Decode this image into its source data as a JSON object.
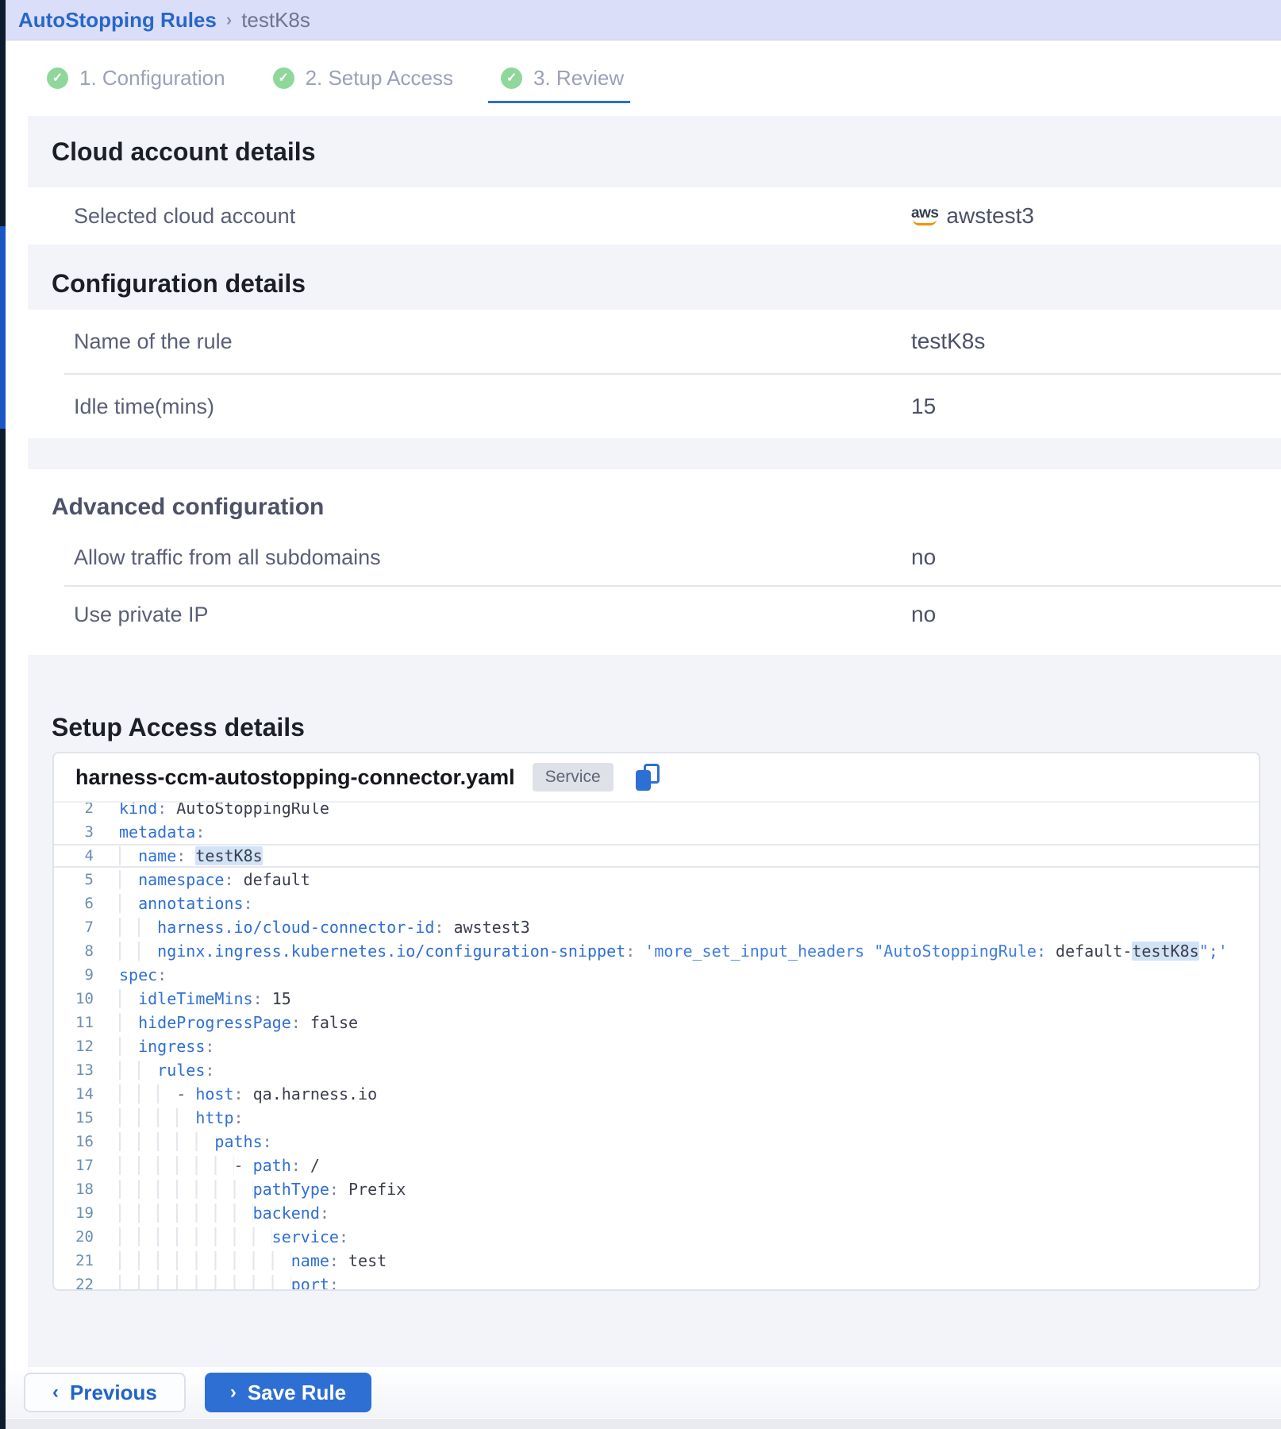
{
  "topbar": {
    "breadcrumb_link": "AutoStopping Rules",
    "separator": "›",
    "breadcrumb_current": "testK8s"
  },
  "steps": [
    {
      "label": "1. Configuration",
      "check": "✓"
    },
    {
      "label": "2. Setup Access",
      "check": "✓"
    },
    {
      "label": "3. Review",
      "check": "✓"
    }
  ],
  "cloud_section": {
    "heading": "Cloud account details",
    "row_label": "Selected cloud account",
    "provider": "aws",
    "account_name": "awstest3"
  },
  "config_section": {
    "heading": "Configuration details",
    "rows": [
      {
        "label": "Name of the rule",
        "value": "testK8s"
      },
      {
        "label": "Idle time(mins)",
        "value": "15"
      }
    ]
  },
  "advanced_section": {
    "heading": "Advanced configuration",
    "rows": [
      {
        "label": "Allow traffic from all subdomains",
        "value": "no"
      },
      {
        "label": "Use private IP",
        "value": "no"
      }
    ]
  },
  "setup_section": {
    "heading": "Setup Access details",
    "file_name": "harness-ccm-autostopping-connector.yaml",
    "badge": "Service"
  },
  "yaml": {
    "lines": [
      {
        "n": "2",
        "t": [
          [
            "k",
            "kind"
          ],
          [
            "p",
            ": "
          ],
          [
            "v",
            "AutoStoppingRule"
          ]
        ]
      },
      {
        "n": "3",
        "t": [
          [
            "k",
            "metadata"
          ],
          [
            "p",
            ":"
          ]
        ]
      },
      {
        "n": "4",
        "cur": true,
        "t": [
          [
            "sp",
            "  "
          ],
          [
            "k",
            "name"
          ],
          [
            "p",
            ": "
          ],
          [
            "hl",
            "testK8s"
          ]
        ]
      },
      {
        "n": "5",
        "t": [
          [
            "sp",
            "  "
          ],
          [
            "k",
            "namespace"
          ],
          [
            "p",
            ": "
          ],
          [
            "v",
            "default"
          ]
        ]
      },
      {
        "n": "6",
        "t": [
          [
            "sp",
            "  "
          ],
          [
            "k",
            "annotations"
          ],
          [
            "p",
            ":"
          ]
        ]
      },
      {
        "n": "7",
        "t": [
          [
            "sp",
            "    "
          ],
          [
            "k",
            "harness.io/cloud-connector-id"
          ],
          [
            "p",
            ": "
          ],
          [
            "v",
            "awstest3"
          ]
        ]
      },
      {
        "n": "8",
        "t": [
          [
            "sp",
            "    "
          ],
          [
            "k",
            "nginx.ingress.kubernetes.io/configuration-snippet"
          ],
          [
            "p",
            ": "
          ],
          [
            "s",
            "'more_set_input_headers \"AutoStoppingRule: "
          ],
          [
            "v",
            "default-"
          ],
          [
            "hl",
            "testK8s"
          ],
          [
            "s",
            "\";'"
          ]
        ]
      },
      {
        "n": "9",
        "t": [
          [
            "k",
            "spec"
          ],
          [
            "p",
            ":"
          ]
        ]
      },
      {
        "n": "10",
        "t": [
          [
            "sp",
            "  "
          ],
          [
            "k",
            "idleTimeMins"
          ],
          [
            "p",
            ": "
          ],
          [
            "v",
            "15"
          ]
        ]
      },
      {
        "n": "11",
        "t": [
          [
            "sp",
            "  "
          ],
          [
            "k",
            "hideProgressPage"
          ],
          [
            "p",
            ": "
          ],
          [
            "v",
            "false"
          ]
        ]
      },
      {
        "n": "12",
        "t": [
          [
            "sp",
            "  "
          ],
          [
            "k",
            "ingress"
          ],
          [
            "p",
            ":"
          ]
        ]
      },
      {
        "n": "13",
        "t": [
          [
            "sp",
            "    "
          ],
          [
            "k",
            "rules"
          ],
          [
            "p",
            ":"
          ]
        ]
      },
      {
        "n": "14",
        "t": [
          [
            "sp",
            "      "
          ],
          [
            "d",
            "- "
          ],
          [
            "k",
            "host"
          ],
          [
            "p",
            ": "
          ],
          [
            "v",
            "qa.harness.io"
          ]
        ]
      },
      {
        "n": "15",
        "t": [
          [
            "sp",
            "        "
          ],
          [
            "k",
            "http"
          ],
          [
            "p",
            ":"
          ]
        ]
      },
      {
        "n": "16",
        "t": [
          [
            "sp",
            "          "
          ],
          [
            "k",
            "paths"
          ],
          [
            "p",
            ":"
          ]
        ]
      },
      {
        "n": "17",
        "t": [
          [
            "sp",
            "            "
          ],
          [
            "d",
            "- "
          ],
          [
            "k",
            "path"
          ],
          [
            "p",
            ": "
          ],
          [
            "v",
            "/"
          ]
        ]
      },
      {
        "n": "18",
        "t": [
          [
            "sp",
            "              "
          ],
          [
            "k",
            "pathType"
          ],
          [
            "p",
            ": "
          ],
          [
            "v",
            "Prefix"
          ]
        ]
      },
      {
        "n": "19",
        "t": [
          [
            "sp",
            "              "
          ],
          [
            "k",
            "backend"
          ],
          [
            "p",
            ":"
          ]
        ]
      },
      {
        "n": "20",
        "t": [
          [
            "sp",
            "                "
          ],
          [
            "k",
            "service"
          ],
          [
            "p",
            ":"
          ]
        ]
      },
      {
        "n": "21",
        "t": [
          [
            "sp",
            "                  "
          ],
          [
            "k",
            "name"
          ],
          [
            "p",
            ": "
          ],
          [
            "v",
            "test"
          ]
        ]
      },
      {
        "n": "22",
        "t": [
          [
            "sp",
            "                  "
          ],
          [
            "k",
            "port"
          ],
          [
            "p",
            ":"
          ]
        ]
      }
    ]
  },
  "footer": {
    "previous_label": "Previous",
    "previous_icon": "‹",
    "save_label": "Save Rule",
    "save_icon": "›"
  },
  "colors": {
    "accent_blue": "#2e6fd3",
    "check_green": "#90d79b",
    "topbar_bg": "#dadef8",
    "canvas_bg": "#f3f4f9"
  }
}
